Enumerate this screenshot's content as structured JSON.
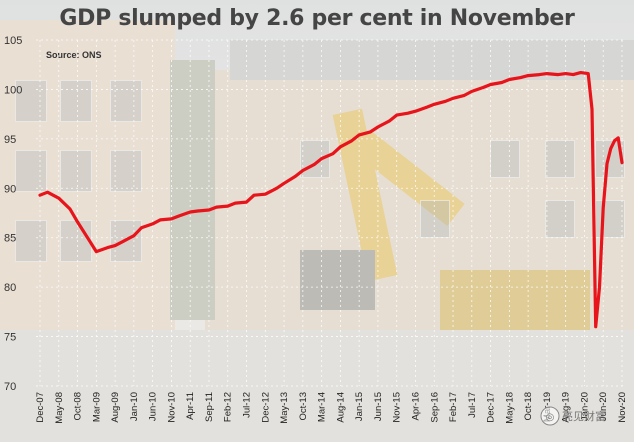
{
  "chart_data": {
    "type": "line",
    "title": "GDP slumped by 2.6 per cent in November",
    "source": "Source: ONS",
    "xlabel": "",
    "ylabel": "",
    "ylim": [
      70,
      105
    ],
    "yticks": [
      70,
      75,
      80,
      85,
      90,
      95,
      100,
      105
    ],
    "x_tick_labels": [
      "Dec-07",
      "May-08",
      "Oct-08",
      "Mar-09",
      "Aug-09",
      "Jan-10",
      "Jun-10",
      "Nov-10",
      "Apr-11",
      "Sep-11",
      "Feb-12",
      "Jul-12",
      "Dec-12",
      "May-13",
      "Oct-13",
      "Mar-14",
      "Aug-14",
      "Jan-15",
      "Jun-15",
      "Nov-15",
      "Apr-16",
      "Sep-16",
      "Feb-17",
      "Jul-17",
      "Dec-17",
      "May-18",
      "Oct-18",
      "Mar-19",
      "Aug-19",
      "Jan-20",
      "Jun-20",
      "Nov-20"
    ],
    "grid": true,
    "line_color": "#e8141b",
    "series": [
      {
        "name": "",
        "x": [
          "Dec-07",
          "Feb-08",
          "May-08",
          "Aug-08",
          "Oct-08",
          "Jan-09",
          "Mar-09",
          "Jun-09",
          "Aug-09",
          "Oct-09",
          "Jan-10",
          "Mar-10",
          "Jun-10",
          "Aug-10",
          "Nov-10",
          "Jan-11",
          "Apr-11",
          "Jun-11",
          "Sep-11",
          "Nov-11",
          "Feb-12",
          "Apr-12",
          "Jul-12",
          "Sep-12",
          "Dec-12",
          "Mar-13",
          "May-13",
          "Aug-13",
          "Oct-13",
          "Jan-14",
          "Mar-14",
          "Jun-14",
          "Aug-14",
          "Nov-14",
          "Jan-15",
          "Apr-15",
          "Jun-15",
          "Sep-15",
          "Nov-15",
          "Feb-16",
          "Apr-16",
          "Jul-16",
          "Sep-16",
          "Dec-16",
          "Feb-17",
          "May-17",
          "Jul-17",
          "Oct-17",
          "Dec-17",
          "Mar-18",
          "May-18",
          "Aug-18",
          "Oct-18",
          "Jan-19",
          "Mar-19",
          "Jun-19",
          "Aug-19",
          "Oct-19",
          "Dec-19",
          "Feb-20",
          "Mar-20",
          "Apr-20",
          "May-20",
          "Jun-20",
          "Jul-20",
          "Aug-20",
          "Sep-20",
          "Oct-20",
          "Nov-20"
        ],
        "values": [
          89.3,
          89.6,
          89.0,
          87.9,
          86.6,
          84.8,
          83.6,
          84.0,
          84.2,
          84.6,
          85.2,
          86.0,
          86.4,
          86.8,
          86.9,
          87.2,
          87.6,
          87.7,
          87.8,
          88.1,
          88.2,
          88.5,
          88.6,
          89.3,
          89.4,
          90.0,
          90.5,
          91.2,
          91.8,
          92.4,
          93.0,
          93.5,
          94.2,
          94.8,
          95.4,
          95.7,
          96.2,
          96.8,
          97.4,
          97.6,
          97.8,
          98.2,
          98.5,
          98.8,
          99.1,
          99.4,
          99.8,
          100.2,
          100.5,
          100.7,
          101.0,
          101.2,
          101.4,
          101.5,
          101.6,
          101.5,
          101.6,
          101.5,
          101.7,
          101.6,
          98.0,
          76.0,
          80.0,
          88.0,
          92.5,
          94.0,
          94.8,
          95.1,
          92.6
        ]
      }
    ]
  },
  "watermark_text": "亮见财富"
}
